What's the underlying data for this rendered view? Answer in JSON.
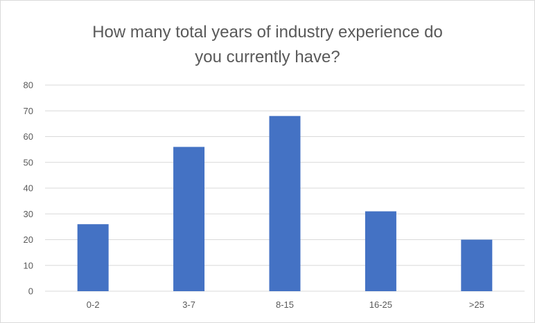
{
  "chart_data": {
    "type": "bar",
    "title_lines": [
      "How many total years of industry experience do",
      "you currently have?"
    ],
    "categories": [
      "0-2",
      "3-7",
      "8-15",
      "16-25",
      ">25"
    ],
    "values": [
      26,
      56,
      68,
      31,
      20
    ],
    "xlabel": "",
    "ylabel": "",
    "ylim": [
      0,
      80
    ],
    "yticks": [
      "0",
      "10",
      "20",
      "30",
      "40",
      "50",
      "60",
      "70",
      "80"
    ],
    "grid": true,
    "legend": "none",
    "colors": {
      "bar": "#4472C4",
      "grid": "#d9d9d9",
      "text": "#595959"
    }
  }
}
